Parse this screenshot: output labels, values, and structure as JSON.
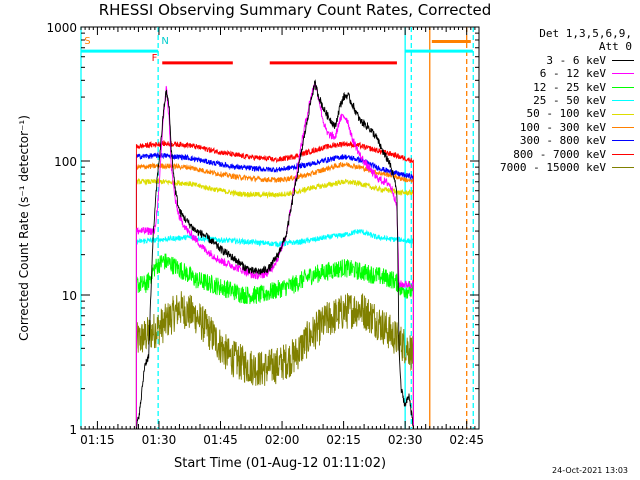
{
  "chart_data": {
    "type": "line",
    "title": "RHESSI Observing Summary Count Rates, Corrected",
    "xlabel": "Start Time (01-Aug-12 01:11:02)",
    "ylabel": "Corrected Count Rate (s⁻¹ detector⁻¹)",
    "ylog": true,
    "ylim": [
      1,
      1000
    ],
    "xlim_minutes": [
      0,
      97
    ],
    "x_ticks": [
      {
        "t": 4,
        "label": "01:15"
      },
      {
        "t": 19,
        "label": "01:30"
      },
      {
        "t": 34,
        "label": "01:45"
      },
      {
        "t": 49,
        "label": "02:00"
      },
      {
        "t": 64,
        "label": "02:15"
      },
      {
        "t": 79,
        "label": "02:30"
      },
      {
        "t": 94,
        "label": "02:45"
      }
    ],
    "y_ticks": [
      {
        "v": 1,
        "label": "1"
      },
      {
        "v": 10,
        "label": "10"
      },
      {
        "v": 100,
        "label": "100"
      },
      {
        "v": 1000,
        "label": "1000"
      }
    ],
    "legend_header": [
      "Det 1,3,5,6,9,",
      "Att 0"
    ],
    "series": [
      {
        "name": "3 - 6 keV",
        "color": "#000000",
        "knots": [
          [
            13.5,
            1
          ],
          [
            14.5,
            1.5
          ],
          [
            15.5,
            3
          ],
          [
            16.5,
            3.5
          ],
          [
            17.5,
            25
          ],
          [
            18.5,
            70
          ],
          [
            19.5,
            140
          ],
          [
            20.2,
            250
          ],
          [
            20.8,
            330
          ],
          [
            21.5,
            250
          ],
          [
            22,
            120
          ],
          [
            23,
            60
          ],
          [
            24,
            42
          ],
          [
            26,
            35
          ],
          [
            28,
            30
          ],
          [
            30,
            28
          ],
          [
            32,
            25
          ],
          [
            34,
            22
          ],
          [
            36,
            20
          ],
          [
            38,
            18
          ],
          [
            40,
            16
          ],
          [
            42,
            15
          ],
          [
            44,
            15
          ],
          [
            46,
            16
          ],
          [
            48,
            20
          ],
          [
            50,
            28
          ],
          [
            52,
            60
          ],
          [
            54,
            130
          ],
          [
            56,
            280
          ],
          [
            57,
            380
          ],
          [
            58,
            300
          ],
          [
            59,
            250
          ],
          [
            60,
            220
          ],
          [
            62,
            180
          ],
          [
            63,
            250
          ],
          [
            64,
            300
          ],
          [
            65,
            310
          ],
          [
            66,
            270
          ],
          [
            68,
            200
          ],
          [
            70,
            180
          ],
          [
            72,
            150
          ],
          [
            74,
            110
          ],
          [
            75,
            100
          ],
          [
            76,
            80
          ],
          [
            77,
            60
          ],
          [
            77.5,
            4
          ],
          [
            78,
            2
          ],
          [
            79,
            1.5
          ],
          [
            80,
            1.8
          ],
          [
            81,
            1
          ]
        ]
      },
      {
        "name": "6 - 12 keV",
        "color": "#ff00ff",
        "knots": [
          [
            13.5,
            30
          ],
          [
            18,
            30
          ],
          [
            19,
            60
          ],
          [
            20,
            200
          ],
          [
            20.8,
            350
          ],
          [
            21.5,
            200
          ],
          [
            22,
            90
          ],
          [
            23,
            50
          ],
          [
            24,
            38
          ],
          [
            26,
            30
          ],
          [
            28,
            26
          ],
          [
            30,
            22
          ],
          [
            32,
            20
          ],
          [
            34,
            18
          ],
          [
            36,
            17
          ],
          [
            38,
            16
          ],
          [
            40,
            15
          ],
          [
            42,
            14
          ],
          [
            44,
            14
          ],
          [
            46,
            15
          ],
          [
            48,
            19
          ],
          [
            50,
            28
          ],
          [
            52,
            65
          ],
          [
            54,
            150
          ],
          [
            56,
            300
          ],
          [
            57,
            380
          ],
          [
            58,
            290
          ],
          [
            59,
            200
          ],
          [
            60,
            160
          ],
          [
            62,
            150
          ],
          [
            63,
            200
          ],
          [
            64,
            220
          ],
          [
            65,
            200
          ],
          [
            66,
            150
          ],
          [
            68,
            110
          ],
          [
            70,
            90
          ],
          [
            72,
            75
          ],
          [
            74,
            70
          ],
          [
            75,
            68
          ],
          [
            76,
            60
          ],
          [
            77,
            45
          ],
          [
            77.5,
            12
          ],
          [
            81,
            12
          ]
        ]
      },
      {
        "name": "12 - 25 keV",
        "color": "#00ff00",
        "knots": [
          [
            13.5,
            12
          ],
          [
            16,
            12
          ],
          [
            18,
            16
          ],
          [
            20,
            18
          ],
          [
            22,
            17
          ],
          [
            25,
            15
          ],
          [
            28,
            13
          ],
          [
            32,
            12
          ],
          [
            36,
            11
          ],
          [
            40,
            10
          ],
          [
            44,
            10
          ],
          [
            48,
            11
          ],
          [
            52,
            12
          ],
          [
            56,
            14
          ],
          [
            60,
            15
          ],
          [
            64,
            16
          ],
          [
            68,
            15
          ],
          [
            72,
            14
          ],
          [
            76,
            13
          ],
          [
            77.5,
            12
          ],
          [
            78,
            11
          ],
          [
            80,
            11
          ],
          [
            81,
            10
          ]
        ]
      },
      {
        "name": "25 - 50 keV",
        "color": "#00ffff",
        "knots": [
          [
            13.5,
            25
          ],
          [
            20,
            26
          ],
          [
            26,
            27
          ],
          [
            32,
            26
          ],
          [
            40,
            25
          ],
          [
            48,
            24
          ],
          [
            54,
            25
          ],
          [
            60,
            27
          ],
          [
            64,
            28
          ],
          [
            68,
            30
          ],
          [
            72,
            27
          ],
          [
            76,
            26
          ],
          [
            77.5,
            26
          ],
          [
            81,
            25
          ]
        ]
      },
      {
        "name": "50 - 100 keV",
        "color": "#dddd00",
        "knots": [
          [
            13.5,
            70
          ],
          [
            20,
            70
          ],
          [
            26,
            68
          ],
          [
            32,
            62
          ],
          [
            38,
            57
          ],
          [
            44,
            56
          ],
          [
            48,
            56
          ],
          [
            52,
            58
          ],
          [
            56,
            63
          ],
          [
            60,
            66
          ],
          [
            64,
            70
          ],
          [
            68,
            68
          ],
          [
            72,
            62
          ],
          [
            76,
            60
          ],
          [
            77.5,
            58
          ],
          [
            81,
            58
          ]
        ]
      },
      {
        "name": "100 - 300 keV",
        "color": "#ff8000",
        "knots": [
          [
            13.5,
            90
          ],
          [
            20,
            92
          ],
          [
            26,
            90
          ],
          [
            32,
            82
          ],
          [
            38,
            76
          ],
          [
            44,
            73
          ],
          [
            48,
            72
          ],
          [
            52,
            75
          ],
          [
            56,
            80
          ],
          [
            60,
            88
          ],
          [
            64,
            95
          ],
          [
            68,
            90
          ],
          [
            72,
            82
          ],
          [
            76,
            78
          ],
          [
            77.5,
            75
          ],
          [
            81,
            70
          ]
        ]
      },
      {
        "name": "300 - 800 keV",
        "color": "#0000ff",
        "knots": [
          [
            13.5,
            108
          ],
          [
            20,
            110
          ],
          [
            26,
            106
          ],
          [
            32,
            97
          ],
          [
            38,
            90
          ],
          [
            44,
            87
          ],
          [
            48,
            86
          ],
          [
            52,
            90
          ],
          [
            56,
            95
          ],
          [
            60,
            102
          ],
          [
            64,
            108
          ],
          [
            68,
            102
          ],
          [
            72,
            90
          ],
          [
            76,
            82
          ],
          [
            77.5,
            80
          ],
          [
            81,
            76
          ]
        ]
      },
      {
        "name": "800 - 7000 keV",
        "color": "#ff0000",
        "knots": [
          [
            13.5,
            128
          ],
          [
            20,
            135
          ],
          [
            26,
            132
          ],
          [
            32,
            120
          ],
          [
            38,
            110
          ],
          [
            44,
            105
          ],
          [
            48,
            102
          ],
          [
            52,
            108
          ],
          [
            56,
            118
          ],
          [
            60,
            128
          ],
          [
            64,
            135
          ],
          [
            68,
            130
          ],
          [
            72,
            120
          ],
          [
            76,
            112
          ],
          [
            77.5,
            108
          ],
          [
            81,
            100
          ]
        ]
      },
      {
        "name": "7000 - 15000 keV",
        "color": "#808000",
        "knots": [
          [
            13.5,
            4.5
          ],
          [
            16,
            5
          ],
          [
            20,
            6
          ],
          [
            24,
            8
          ],
          [
            28,
            7
          ],
          [
            32,
            5
          ],
          [
            36,
            3.5
          ],
          [
            40,
            3
          ],
          [
            44,
            2.8
          ],
          [
            48,
            3
          ],
          [
            52,
            3.5
          ],
          [
            56,
            5
          ],
          [
            60,
            6.5
          ],
          [
            64,
            7.5
          ],
          [
            68,
            8
          ],
          [
            72,
            6.5
          ],
          [
            76,
            5
          ],
          [
            77.5,
            4.5
          ],
          [
            80,
            4
          ],
          [
            81,
            3.5
          ]
        ]
      }
    ],
    "annotations": [
      {
        "text": "S",
        "color": "#ff8000",
        "t": 0.8
      },
      {
        "text": "N",
        "color": "#00cccc",
        "t": 19.6
      },
      {
        "text": "F",
        "color": "#ff0000",
        "t": 17.2
      }
    ],
    "flag_bars": [
      {
        "color": "#00ffff",
        "t0": 0,
        "t1": 18.8,
        "v": 660
      },
      {
        "color": "#00ffff",
        "t0": 79,
        "t1": 95.5,
        "v": 660
      },
      {
        "color": "#ff8000",
        "t0": 85.5,
        "t1": 95,
        "v": 780
      },
      {
        "color": "#ff0000",
        "t0": 19.8,
        "t1": 37,
        "v": 540
      },
      {
        "color": "#ff0000",
        "t0": 46,
        "t1": 77,
        "v": 540
      }
    ],
    "vlines": [
      {
        "t": 0,
        "color": "#00ffff",
        "dashed": false
      },
      {
        "t": 18.8,
        "color": "#00ffff",
        "dashed": true
      },
      {
        "t": 79,
        "color": "#00ffff",
        "dashed": false
      },
      {
        "t": 80.5,
        "color": "#00ffff",
        "dashed": true
      },
      {
        "t": 85,
        "color": "#ff8000",
        "dashed": false
      },
      {
        "t": 94,
        "color": "#ff8000",
        "dashed": true
      },
      {
        "t": 95.6,
        "color": "#00ffff",
        "dashed": true
      }
    ]
  },
  "footer": {
    "timestamp": "24-Oct-2021 13:03"
  }
}
